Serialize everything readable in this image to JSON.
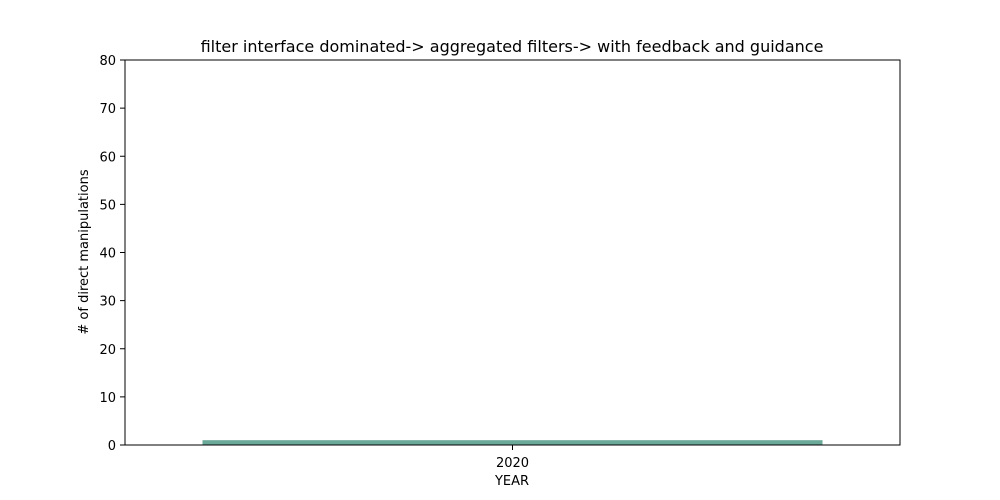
{
  "chart_data": {
    "type": "bar",
    "title": "filter interface dominated-> aggregated filters-> with feedback and guidance",
    "xlabel": "YEAR",
    "ylabel": "# of direct manipulations",
    "categories": [
      "2020"
    ],
    "values": [
      1
    ],
    "ylim": [
      0,
      80
    ],
    "yticks": [
      0,
      10,
      20,
      30,
      40,
      50,
      60,
      70,
      80
    ],
    "grid": false,
    "legend": "none",
    "bar_color": "#6aa897"
  }
}
